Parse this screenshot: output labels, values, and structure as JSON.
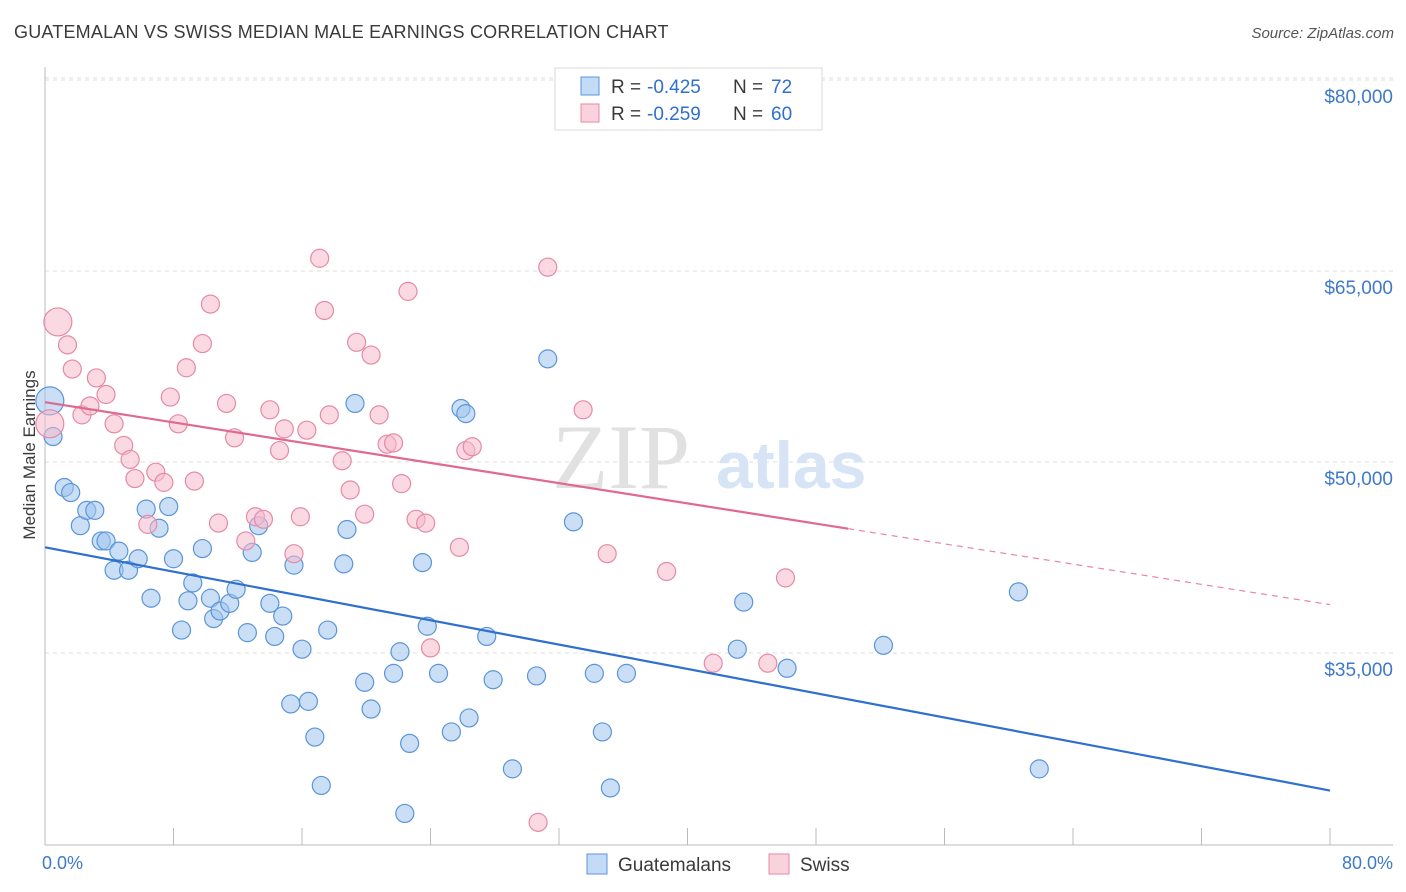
{
  "title": "GUATEMALAN VS SWISS MEDIAN MALE EARNINGS CORRELATION CHART",
  "source": "Source: ZipAtlas.com",
  "watermark": {
    "zip": "ZIP",
    "atlas": "atlas"
  },
  "colors": {
    "blue": "#9fc5ef",
    "blue_stroke": "#5b95d8",
    "blue_line": "#2f6fce",
    "pink": "#f6b9cc",
    "pink_stroke": "#e58aa6",
    "pink_line": "#e0698f",
    "axis_text": "#3f79c9",
    "grid": "#dddddd"
  },
  "legend_top": {
    "rows": [
      {
        "r_label": "R =",
        "r_value": "-0.425",
        "n_label": "N =",
        "n_value": "72"
      },
      {
        "r_label": "R =",
        "r_value": "-0.259",
        "n_label": "N =",
        "n_value": "60"
      }
    ]
  },
  "chart_data": {
    "type": "scatter",
    "title": "GUATEMALAN VS SWISS MEDIAN MALE EARNINGS CORRELATION CHART",
    "xlabel": "",
    "ylabel": "Median Male Earnings",
    "xlim": [
      0,
      80
    ],
    "ylim": [
      18000,
      83000
    ],
    "x_tick_labels": [
      "0.0%",
      "80.0%"
    ],
    "y_ticks": [
      35000,
      50000,
      65000,
      80000
    ],
    "y_tick_labels": [
      "$35,000",
      "$50,000",
      "$65,000",
      "$80,000"
    ],
    "grid": true,
    "legend_position": "bottom",
    "series": [
      {
        "name": "Guatemalans",
        "r": -0.425,
        "n": 72,
        "trend": {
          "x": [
            0,
            80
          ],
          "y": [
            43300,
            24200
          ],
          "dashed_from": null
        },
        "points": [
          [
            0.3,
            54800
          ],
          [
            0.5,
            52000
          ],
          [
            1.2,
            48000
          ],
          [
            1.6,
            47600
          ],
          [
            2.2,
            45000
          ],
          [
            2.6,
            46200
          ],
          [
            3.1,
            46200
          ],
          [
            3.5,
            43800
          ],
          [
            3.8,
            43800
          ],
          [
            4.3,
            41500
          ],
          [
            4.6,
            43000
          ],
          [
            5.2,
            41500
          ],
          [
            5.8,
            42400
          ],
          [
            6.3,
            46300
          ],
          [
            6.6,
            39300
          ],
          [
            7.1,
            44800
          ],
          [
            7.7,
            46500
          ],
          [
            8.0,
            42400
          ],
          [
            8.5,
            36800
          ],
          [
            8.9,
            39100
          ],
          [
            9.2,
            40500
          ],
          [
            9.8,
            43200
          ],
          [
            10.3,
            39300
          ],
          [
            10.5,
            37700
          ],
          [
            10.9,
            38300
          ],
          [
            11.5,
            38900
          ],
          [
            11.9,
            40000
          ],
          [
            12.6,
            36600
          ],
          [
            12.9,
            42900
          ],
          [
            13.3,
            45000
          ],
          [
            14.0,
            38900
          ],
          [
            14.3,
            36300
          ],
          [
            14.8,
            37900
          ],
          [
            15.3,
            31000
          ],
          [
            15.5,
            41900
          ],
          [
            16.0,
            35300
          ],
          [
            16.4,
            31200
          ],
          [
            16.8,
            28400
          ],
          [
            17.2,
            24600
          ],
          [
            17.6,
            36800
          ],
          [
            18.6,
            42000
          ],
          [
            18.8,
            44700
          ],
          [
            19.3,
            54600
          ],
          [
            19.9,
            32700
          ],
          [
            20.3,
            30600
          ],
          [
            21.7,
            33400
          ],
          [
            22.1,
            35100
          ],
          [
            22.4,
            22400
          ],
          [
            22.7,
            27900
          ],
          [
            23.5,
            42100
          ],
          [
            23.8,
            37100
          ],
          [
            24.5,
            33400
          ],
          [
            25.3,
            28800
          ],
          [
            25.9,
            54200
          ],
          [
            26.2,
            53800
          ],
          [
            26.4,
            29900
          ],
          [
            27.5,
            36300
          ],
          [
            27.9,
            32900
          ],
          [
            29.1,
            25900
          ],
          [
            30.6,
            33200
          ],
          [
            31.3,
            58100
          ],
          [
            32.9,
            45300
          ],
          [
            34.2,
            33400
          ],
          [
            34.7,
            28800
          ],
          [
            35.2,
            24400
          ],
          [
            36.2,
            33400
          ],
          [
            43.1,
            35300
          ],
          [
            43.5,
            39000
          ],
          [
            46.2,
            33800
          ],
          [
            52.2,
            35600
          ],
          [
            60.6,
            39800
          ],
          [
            61.9,
            25900
          ]
        ]
      },
      {
        "name": "Swiss",
        "r": -0.259,
        "n": 60,
        "trend": {
          "x": [
            0,
            80
          ],
          "y": [
            54700,
            38800
          ],
          "dashed_from": 50
        },
        "points": [
          [
            0.3,
            53000
          ],
          [
            0.8,
            61000
          ],
          [
            1.4,
            59200
          ],
          [
            1.7,
            57300
          ],
          [
            2.3,
            53700
          ],
          [
            2.8,
            54400
          ],
          [
            3.2,
            56600
          ],
          [
            3.8,
            55300
          ],
          [
            4.3,
            53000
          ],
          [
            4.9,
            51300
          ],
          [
            5.3,
            50200
          ],
          [
            5.6,
            48700
          ],
          [
            6.4,
            45100
          ],
          [
            6.9,
            49200
          ],
          [
            7.4,
            48400
          ],
          [
            7.8,
            55100
          ],
          [
            8.3,
            53000
          ],
          [
            8.8,
            57400
          ],
          [
            9.3,
            48500
          ],
          [
            9.8,
            59300
          ],
          [
            10.3,
            62400
          ],
          [
            10.8,
            45200
          ],
          [
            11.3,
            54600
          ],
          [
            11.8,
            51900
          ],
          [
            12.5,
            43800
          ],
          [
            13.1,
            45700
          ],
          [
            13.6,
            45500
          ],
          [
            14.0,
            54100
          ],
          [
            14.6,
            50900
          ],
          [
            14.9,
            52600
          ],
          [
            15.5,
            42800
          ],
          [
            15.9,
            45700
          ],
          [
            16.3,
            52500
          ],
          [
            17.1,
            66000
          ],
          [
            17.4,
            61900
          ],
          [
            17.7,
            53700
          ],
          [
            18.5,
            50100
          ],
          [
            19.0,
            47800
          ],
          [
            19.4,
            59400
          ],
          [
            19.9,
            45900
          ],
          [
            20.3,
            58400
          ],
          [
            20.8,
            53700
          ],
          [
            21.3,
            51400
          ],
          [
            21.7,
            51500
          ],
          [
            22.2,
            48300
          ],
          [
            22.6,
            63400
          ],
          [
            23.1,
            45500
          ],
          [
            23.7,
            45200
          ],
          [
            24.0,
            35400
          ],
          [
            25.8,
            43300
          ],
          [
            26.2,
            50900
          ],
          [
            26.6,
            51200
          ],
          [
            30.7,
            21700
          ],
          [
            31.3,
            65300
          ],
          [
            33.5,
            54100
          ],
          [
            35.0,
            42800
          ],
          [
            38.7,
            41400
          ],
          [
            41.6,
            34200
          ],
          [
            46.1,
            40900
          ],
          [
            45.0,
            34200
          ]
        ]
      }
    ]
  },
  "legend_bottom": [
    {
      "label": "Guatemalans"
    },
    {
      "label": "Swiss"
    }
  ]
}
